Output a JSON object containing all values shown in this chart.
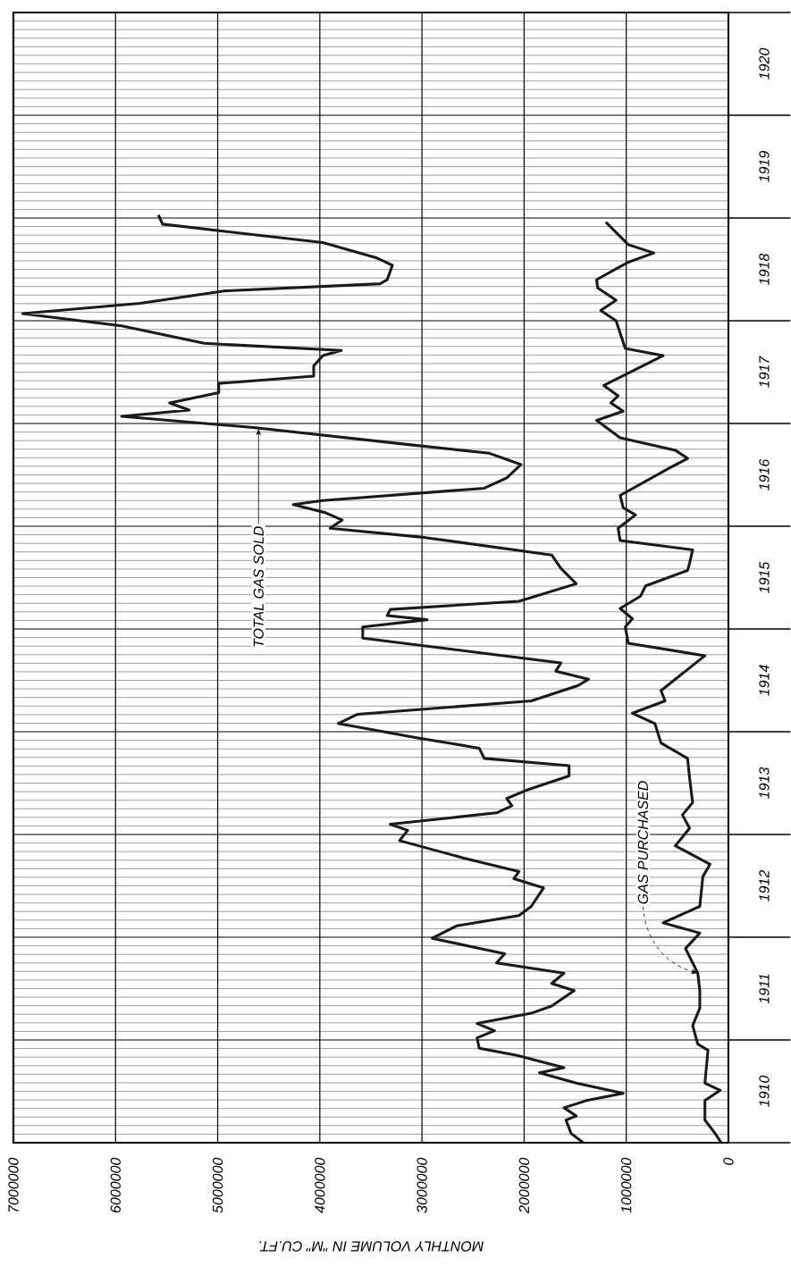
{
  "chart_data": {
    "type": "line",
    "orientation": "horizontal",
    "xlabel": "MONTHLY VOLUME IN \"M\" CU.FT.",
    "xlim": [
      7000000,
      0
    ],
    "ylim": [
      1910,
      1921
    ],
    "xticks": [
      0,
      1000000,
      2000000,
      3000000,
      4000000,
      5000000,
      6000000,
      7000000
    ],
    "yticks": [
      {
        "value": 1910,
        "label": null
      },
      {
        "value": 1911,
        "label": null
      },
      {
        "value": 1912,
        "label": null
      },
      {
        "value": 1913,
        "label": null
      },
      {
        "value": 1914,
        "label": null
      },
      {
        "value": 1915,
        "label": null
      },
      {
        "value": 1916,
        "label": null
      },
      {
        "value": 1917,
        "label": null
      },
      {
        "value": 1918,
        "label": null
      },
      {
        "value": 1919,
        "label": null
      },
      {
        "value": 1920,
        "label": null
      },
      {
        "value": 1921,
        "label": null
      },
      {
        "value": 1910.5,
        "label": "1910"
      },
      {
        "value": 1911.5,
        "label": "1911"
      },
      {
        "value": 1912.5,
        "label": "1912"
      },
      {
        "value": 1913.5,
        "label": "1913"
      },
      {
        "value": 1914.5,
        "label": "1914"
      },
      {
        "value": 1915.5,
        "label": "1915"
      },
      {
        "value": 1916.5,
        "label": "1916"
      },
      {
        "value": 1917.5,
        "label": "1917"
      },
      {
        "value": 1918.5,
        "label": "1918"
      },
      {
        "value": 1919.5,
        "label": "1919"
      },
      {
        "value": 1920.5,
        "label": "1920"
      }
    ],
    "grid": true,
    "marker": "none",
    "line_style": "solid",
    "series": [
      {
        "color": "#1a1a1a",
        "x": [
          1910.0,
          1910.09,
          1910.22,
          1910.26,
          1910.34,
          1910.41,
          1910.48,
          1910.58,
          1910.68,
          1910.73,
          1910.85,
          1910.92,
          1911.02,
          1911.09,
          1911.16,
          1911.26,
          1911.33,
          1911.48,
          1911.55,
          1911.65,
          1911.75,
          1911.84,
          1911.9,
          1911.99,
          1912.11,
          1912.21,
          1912.3,
          1912.48,
          1912.57,
          1912.64,
          1912.77,
          1912.94,
          1913.04,
          1913.1,
          1913.21,
          1913.28,
          1913.35,
          1913.43,
          1913.57,
          1913.67,
          1913.74,
          1913.84,
          1913.94,
          1914.08,
          1914.17,
          1914.3,
          1914.45,
          1914.51,
          1914.59,
          1914.67,
          1914.91,
          1915.02,
          1915.09,
          1915.13,
          1915.19,
          1915.27,
          1915.44,
          1915.59,
          1915.72,
          1915.89,
          1915.98,
          1916.06,
          1916.13,
          1916.21,
          1916.25,
          1916.37,
          1916.47,
          1916.6,
          1916.71,
          1916.79,
          1916.96,
          1917.07,
          1917.13,
          1917.2,
          1917.3,
          1917.39,
          1917.46,
          1917.56,
          1917.66,
          1917.71,
          1917.78,
          1917.95,
          1918.07,
          1918.17,
          1918.29,
          1918.36,
          1918.4,
          1918.54,
          1918.61,
          1918.76,
          1918.94,
          1919.03
        ],
        "values": [
          1420000,
          1540000,
          1590000,
          1490000,
          1610000,
          1390000,
          1030000,
          1490000,
          1850000,
          1610000,
          2070000,
          2440000,
          2460000,
          2290000,
          2460000,
          1930000,
          1730000,
          1510000,
          1730000,
          1610000,
          2270000,
          2190000,
          2480000,
          2900000,
          2660000,
          2050000,
          1930000,
          1810000,
          2100000,
          2050000,
          2590000,
          3220000,
          3140000,
          3310000,
          2270000,
          2120000,
          2170000,
          1980000,
          1560000,
          1560000,
          2390000,
          2440000,
          3040000,
          3820000,
          3630000,
          1930000,
          1470000,
          1370000,
          1690000,
          1640000,
          3580000,
          3580000,
          2950000,
          3340000,
          3310000,
          2050000,
          1490000,
          1640000,
          1730000,
          2970000,
          3900000,
          3780000,
          3940000,
          4260000,
          3970000,
          2390000,
          2170000,
          2030000,
          2340000,
          3090000,
          4650000,
          5940000,
          5280000,
          5470000,
          4990000,
          4990000,
          4060000,
          4060000,
          3970000,
          3790000,
          5130000,
          5940000,
          6910000,
          5760000,
          4940000,
          3410000,
          3340000,
          3290000,
          3440000,
          3970000,
          5540000,
          5580000
        ]
      },
      {
        "color": "#1a1a1a",
        "x": [
          1910.0,
          1910.09,
          1910.22,
          1910.41,
          1910.51,
          1910.58,
          1910.9,
          1910.96,
          1911.14,
          1911.31,
          1911.48,
          1911.65,
          1911.89,
          1912.04,
          1912.14,
          1912.3,
          1912.59,
          1912.71,
          1912.89,
          1913.06,
          1913.19,
          1913.31,
          1913.55,
          1913.74,
          1913.89,
          1914.08,
          1914.18,
          1914.3,
          1914.4,
          1914.74,
          1914.86,
          1915.02,
          1915.1,
          1915.2,
          1915.32,
          1915.42,
          1915.57,
          1915.64,
          1915.77,
          1915.86,
          1915.98,
          1916.11,
          1916.18,
          1916.3,
          1916.57,
          1916.66,
          1916.74,
          1916.86,
          1917.03,
          1917.12,
          1917.2,
          1917.27,
          1917.37,
          1917.66,
          1917.73,
          1918.0,
          1918.1,
          1918.2,
          1918.32,
          1918.4,
          1918.57,
          1918.66,
          1918.74,
          1918.86,
          1918.96
        ],
        "values": [
          70000,
          130000,
          230000,
          230000,
          80000,
          230000,
          200000,
          300000,
          350000,
          280000,
          280000,
          300000,
          420000,
          280000,
          640000,
          280000,
          250000,
          180000,
          520000,
          380000,
          450000,
          350000,
          380000,
          400000,
          660000,
          720000,
          940000,
          620000,
          660000,
          230000,
          980000,
          1010000,
          940000,
          1060000,
          860000,
          810000,
          400000,
          380000,
          350000,
          1060000,
          1080000,
          910000,
          1030000,
          1060000,
          570000,
          400000,
          520000,
          1060000,
          1290000,
          1030000,
          1150000,
          1080000,
          1220000,
          640000,
          1010000,
          1100000,
          1250000,
          1100000,
          1280000,
          1290000,
          980000,
          730000,
          980000,
          1100000,
          1200000
        ]
      }
    ],
    "annotations": [
      {
        "text": "TOTAL GAS SOLD",
        "x": 4600000,
        "y": 1916.95
      },
      {
        "text": "GAS PURCHASED",
        "x": 300000,
        "y": 1911.65
      }
    ]
  }
}
